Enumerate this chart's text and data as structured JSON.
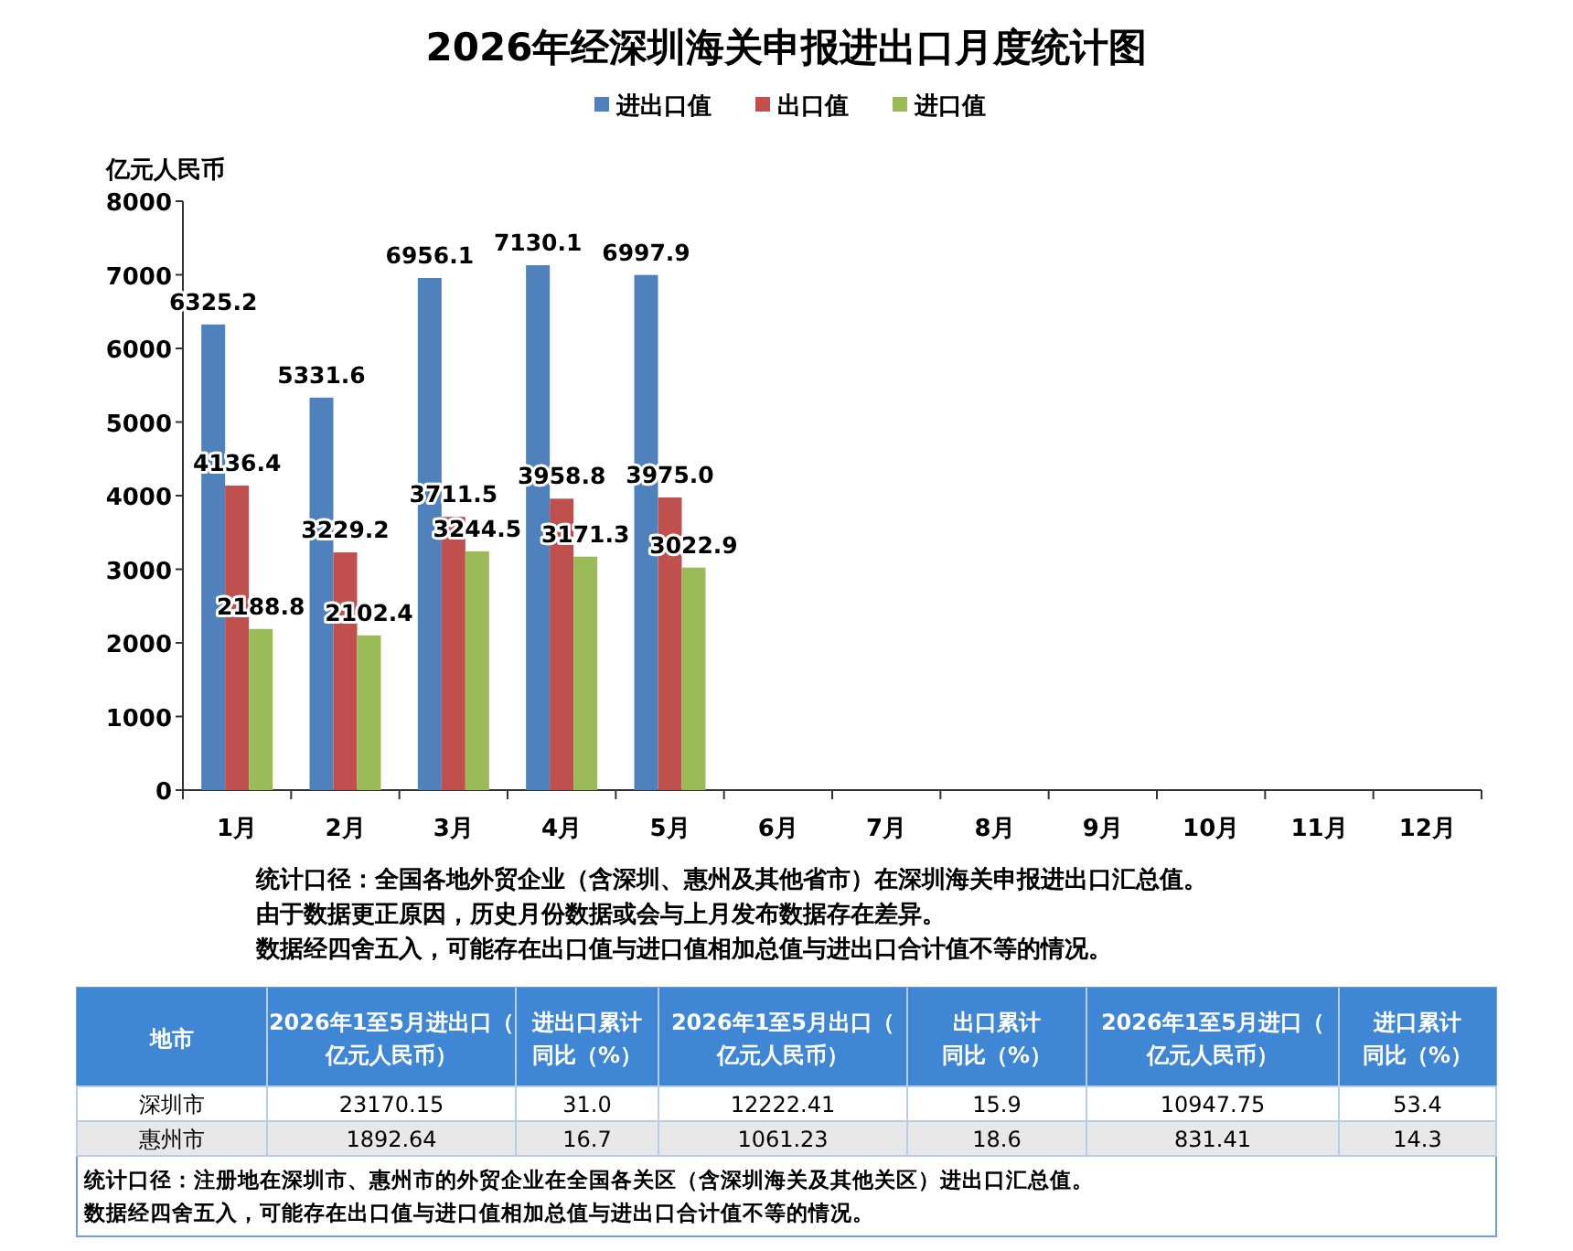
{
  "chart_data": [
    {
      "type": "bar",
      "title": "2026年经深圳海关申报进出口月度统计图",
      "ylabel": "亿元人民币",
      "categories": [
        "1月",
        "2月",
        "3月",
        "4月",
        "5月",
        "6月",
        "7月",
        "8月",
        "9月",
        "10月",
        "11月",
        "12月"
      ],
      "series": [
        {
          "name": "进出口值",
          "color": "#4f81bd",
          "values": [
            6325.2,
            5331.6,
            6956.1,
            7130.1,
            6997.9,
            null,
            null,
            null,
            null,
            null,
            null,
            null
          ],
          "value_labels": [
            "6325.2",
            "5331.6",
            "6956.1",
            "7130.1",
            "6997.9",
            null,
            null,
            null,
            null,
            null,
            null,
            null
          ]
        },
        {
          "name": "出口值",
          "color": "#c0504d",
          "values": [
            4136.4,
            3229.2,
            3711.5,
            3958.8,
            3975.0,
            null,
            null,
            null,
            null,
            null,
            null,
            null
          ],
          "value_labels": [
            "4136.4",
            "3229.2",
            "3711.5",
            "3958.8",
            "3975.0",
            null,
            null,
            null,
            null,
            null,
            null,
            null
          ]
        },
        {
          "name": "进口值",
          "color": "#9bbb59",
          "values": [
            2188.8,
            2102.4,
            3244.5,
            3171.3,
            3022.9,
            null,
            null,
            null,
            null,
            null,
            null,
            null
          ],
          "value_labels": [
            "2188.8",
            "2102.4",
            "3244.5",
            "3171.3",
            "3022.9",
            null,
            null,
            null,
            null,
            null,
            null,
            null
          ]
        }
      ],
      "ylim": [
        0,
        8000
      ],
      "yticks": [
        0,
        1000,
        2000,
        3000,
        4000,
        5000,
        6000,
        7000,
        8000
      ],
      "legend": "top",
      "grid": false,
      "annotations": [
        "统计口径：全国各地外贸企业（含深圳、惠州及其他省市）在深圳海关申报进出口汇总值。",
        "由于数据更正原因，历史月份数据或会与上月发布数据存在差异。",
        "数据经四舍五入，可能存在出口值与进口值相加总值与进出口合计值不等的情况。"
      ]
    },
    {
      "type": "other",
      "categories": [
        "地市",
        "2026年1至5月进出口（亿元人民币）",
        "进出口累计同比（%）",
        "2026年1至5月出口（亿元人民币）",
        "出口累计同比（%）",
        "2026年1至5月进口（亿元人民币）",
        "进口累计同比（%）"
      ],
      "y_categories": [
        "深圳市",
        "惠州市"
      ],
      "cell_labels": [
        [
          "23170.15",
          "31.0",
          "12222.41",
          "15.9",
          "10947.75",
          "53.4"
        ],
        [
          "1892.64",
          "16.7",
          "1061.23",
          "18.6",
          "831.41",
          "14.3"
        ]
      ],
      "annotations": [
        "统计口径：注册地在深圳市、惠州市的外贸企业在全国各关区（含深圳海关及其他关区）进出口汇总值。",
        "数据经四舍五入，可能存在出口值与进口值相加总值与进出口合计值不等的情况。"
      ]
    }
  ]
}
